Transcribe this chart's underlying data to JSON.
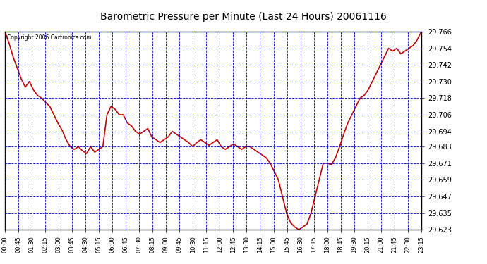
{
  "title": "Barometric Pressure per Minute (Last 24 Hours) 20061116",
  "copyright": "Copyright 2006 Cartronics.com",
  "background_color": "#ffffff",
  "plot_background": "#ffffff",
  "grid_color": "#0000cc",
  "line_color": "#cc0000",
  "line_width": 1.2,
  "yticks": [
    29.623,
    29.635,
    29.647,
    29.659,
    29.671,
    29.683,
    29.694,
    29.706,
    29.718,
    29.73,
    29.742,
    29.754,
    29.766
  ],
  "ymin": 29.623,
  "ymax": 29.766,
  "xtick_labels": [
    "00:00",
    "00:45",
    "01:30",
    "02:15",
    "03:00",
    "03:45",
    "04:30",
    "05:15",
    "06:00",
    "06:45",
    "07:30",
    "08:15",
    "09:00",
    "09:45",
    "10:30",
    "11:15",
    "12:00",
    "12:45",
    "13:30",
    "14:15",
    "15:00",
    "15:45",
    "16:30",
    "17:15",
    "18:00",
    "18:45",
    "19:30",
    "20:15",
    "21:00",
    "21:45",
    "22:30",
    "23:15"
  ],
  "data_points": [
    29.766,
    29.758,
    29.748,
    29.74,
    29.732,
    29.726,
    29.73,
    29.724,
    29.72,
    29.718,
    29.715,
    29.712,
    29.706,
    29.7,
    29.695,
    29.688,
    29.683,
    29.681,
    29.683,
    29.68,
    29.678,
    29.683,
    29.679,
    29.681,
    29.683,
    29.706,
    29.712,
    29.71,
    29.706,
    29.706,
    29.7,
    29.698,
    29.694,
    29.692,
    29.694,
    29.696,
    29.69,
    29.688,
    29.686,
    29.688,
    29.69,
    29.694,
    29.692,
    29.69,
    29.688,
    29.686,
    29.683,
    29.686,
    29.688,
    29.686,
    29.684,
    29.686,
    29.688,
    29.683,
    29.681,
    29.683,
    29.685,
    29.683,
    29.681,
    29.683,
    29.683,
    29.681,
    29.679,
    29.677,
    29.675,
    29.671,
    29.665,
    29.659,
    29.647,
    29.635,
    29.628,
    29.625,
    29.623,
    29.625,
    29.627,
    29.635,
    29.647,
    29.659,
    29.671,
    29.671,
    29.67,
    29.675,
    29.683,
    29.692,
    29.7,
    29.706,
    29.712,
    29.718,
    29.72,
    29.724,
    29.73,
    29.736,
    29.742,
    29.748,
    29.754,
    29.752,
    29.754,
    29.75,
    29.752,
    29.754,
    29.756,
    29.76,
    29.766
  ]
}
